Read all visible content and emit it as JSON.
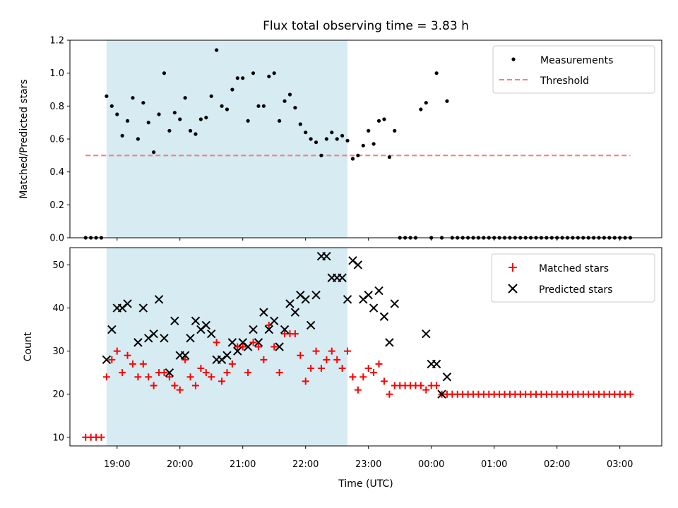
{
  "title": "Flux total observing time = 3.83 h",
  "colors": {
    "shade": "#add8e6",
    "threshold": "#f08080",
    "measurements": "#000000",
    "matched": "#ff0000",
    "predicted": "#000000"
  },
  "chart_data": [
    {
      "type": "scatter",
      "ylabel": "Matched/Predicted stars",
      "xlim": [
        "18:15",
        "03:40"
      ],
      "ylim": [
        0,
        1.2
      ],
      "yticks": [
        0.0,
        0.2,
        0.4,
        0.6,
        0.8,
        1.0,
        1.2
      ],
      "ytick_labels": [
        "0.0",
        "0.2",
        "0.4",
        "0.6",
        "0.8",
        "1.0",
        "1.2"
      ],
      "shaded_interval": [
        "18:50",
        "22:40"
      ],
      "legend_position": "top-right",
      "legend": [
        "Measurements",
        "Threshold"
      ],
      "threshold": {
        "name": "Threshold",
        "y": 0.5,
        "x": [
          "18:30",
          "03:10"
        ]
      },
      "series": [
        {
          "name": "Measurements",
          "x": [
            "18:30",
            "18:35",
            "18:40",
            "18:45",
            "18:50",
            "18:55",
            "19:00",
            "19:05",
            "19:10",
            "19:15",
            "19:20",
            "19:25",
            "19:30",
            "19:35",
            "19:40",
            "19:45",
            "19:50",
            "19:55",
            "20:00",
            "20:05",
            "20:10",
            "20:15",
            "20:20",
            "20:25",
            "20:30",
            "20:35",
            "20:40",
            "20:45",
            "20:50",
            "20:55",
            "21:00",
            "21:05",
            "21:10",
            "21:15",
            "21:20",
            "21:25",
            "21:30",
            "21:35",
            "21:40",
            "21:45",
            "21:50",
            "21:55",
            "22:00",
            "22:05",
            "22:10",
            "22:15",
            "22:20",
            "22:25",
            "22:30",
            "22:35",
            "22:40",
            "22:45",
            "22:50",
            "22:55",
            "23:00",
            "23:05",
            "23:10",
            "23:15",
            "23:20",
            "23:25",
            "23:30",
            "23:35",
            "23:40",
            "23:45",
            "23:50",
            "23:55",
            "00:00",
            "00:05",
            "00:10",
            "00:15",
            "00:20",
            "00:25",
            "00:30",
            "00:35",
            "00:40",
            "00:45",
            "00:50",
            "00:55",
            "01:00",
            "01:05",
            "01:10",
            "01:15",
            "01:20",
            "01:25",
            "01:30",
            "01:35",
            "01:40",
            "01:45",
            "01:50",
            "01:55",
            "02:00",
            "02:05",
            "02:10",
            "02:15",
            "02:20",
            "02:25",
            "02:30",
            "02:35",
            "02:40",
            "02:45",
            "02:50",
            "02:55",
            "03:00",
            "03:05",
            "03:10"
          ],
          "y": [
            0,
            0,
            0,
            0,
            0.86,
            0.8,
            0.75,
            0.62,
            0.71,
            0.85,
            0.6,
            0.82,
            0.7,
            0.52,
            0.75,
            1.0,
            0.65,
            0.76,
            0.72,
            0.85,
            0.65,
            0.63,
            0.72,
            0.73,
            0.86,
            1.14,
            0.8,
            0.78,
            0.9,
            0.97,
            0.97,
            0.71,
            1.0,
            0.8,
            0.8,
            0.98,
            1.0,
            0.71,
            0.83,
            0.87,
            0.79,
            0.69,
            0.64,
            0.6,
            0.58,
            0.5,
            0.6,
            0.64,
            0.6,
            0.62,
            0.59,
            0.48,
            0.5,
            0.56,
            0.65,
            0.57,
            0.71,
            0.72,
            0.49,
            0.65,
            0,
            0,
            0,
            0,
            0.78,
            0.82,
            0,
            1.0,
            0,
            0.83,
            0,
            0,
            0,
            0,
            0,
            0,
            0,
            0,
            0,
            0,
            0,
            0,
            0,
            0,
            0,
            0,
            0,
            0,
            0,
            0,
            0,
            0,
            0,
            0,
            0,
            0,
            0,
            0,
            0,
            0,
            0,
            0,
            0,
            0,
            0
          ]
        }
      ]
    },
    {
      "type": "scatter",
      "xlabel": "Time (UTC)",
      "ylabel": "Count",
      "xlim": [
        "18:15",
        "03:40"
      ],
      "ylim": [
        8,
        54
      ],
      "yticks": [
        10,
        20,
        30,
        40,
        50
      ],
      "ytick_labels": [
        "10",
        "20",
        "30",
        "40",
        "50"
      ],
      "xticks": [
        "19:00",
        "20:00",
        "21:00",
        "22:00",
        "23:00",
        "00:00",
        "01:00",
        "02:00",
        "03:00"
      ],
      "shaded_interval": [
        "18:50",
        "22:40"
      ],
      "legend_position": "top-right",
      "series": [
        {
          "name": "Matched stars",
          "x": [
            "18:30",
            "18:35",
            "18:40",
            "18:45",
            "18:50",
            "18:55",
            "19:00",
            "19:05",
            "19:10",
            "19:15",
            "19:20",
            "19:25",
            "19:30",
            "19:35",
            "19:40",
            "19:45",
            "19:50",
            "19:55",
            "20:00",
            "20:05",
            "20:10",
            "20:15",
            "20:20",
            "20:25",
            "20:30",
            "20:35",
            "20:40",
            "20:45",
            "20:50",
            "20:55",
            "21:00",
            "21:05",
            "21:10",
            "21:15",
            "21:20",
            "21:25",
            "21:30",
            "21:35",
            "21:40",
            "21:45",
            "21:50",
            "21:55",
            "22:00",
            "22:05",
            "22:10",
            "22:15",
            "22:20",
            "22:25",
            "22:30",
            "22:35",
            "22:40",
            "22:45",
            "22:50",
            "22:55",
            "23:00",
            "23:05",
            "23:10",
            "23:15",
            "23:20",
            "23:25",
            "23:30",
            "23:35",
            "23:40",
            "23:45",
            "23:50",
            "23:55",
            "00:00",
            "00:05",
            "00:10",
            "00:15",
            "00:20",
            "00:25",
            "00:30",
            "00:35",
            "00:40",
            "00:45",
            "00:50",
            "00:55",
            "01:00",
            "01:05",
            "01:10",
            "01:15",
            "01:20",
            "01:25",
            "01:30",
            "01:35",
            "01:40",
            "01:45",
            "01:50",
            "01:55",
            "02:00",
            "02:05",
            "02:10",
            "02:15",
            "02:20",
            "02:25",
            "02:30",
            "02:35",
            "02:40",
            "02:45",
            "02:50",
            "02:55",
            "03:00",
            "03:05",
            "03:10"
          ],
          "y": [
            10,
            10,
            10,
            10,
            24,
            28,
            30,
            25,
            29,
            27,
            24,
            27,
            24,
            22,
            25,
            25,
            24,
            22,
            21,
            28,
            24,
            22,
            26,
            25,
            24,
            32,
            23,
            25,
            27,
            31,
            31,
            25,
            32,
            31,
            28,
            36,
            31,
            25,
            34,
            34,
            34,
            29,
            23,
            26,
            30,
            26,
            28,
            30,
            28,
            26,
            30,
            24,
            21,
            24,
            26,
            25,
            27,
            23,
            20,
            22,
            22,
            22,
            22,
            22,
            22,
            21,
            22,
            22,
            20,
            20,
            20,
            20,
            20,
            20,
            20,
            20,
            20,
            20,
            20,
            20,
            20,
            20,
            20,
            20,
            20,
            20,
            20,
            20,
            20,
            20,
            20,
            20,
            20,
            20,
            20,
            20,
            20,
            20,
            20,
            20,
            20,
            20,
            20,
            20,
            20
          ]
        },
        {
          "name": "Predicted stars",
          "x": [
            "18:50",
            "18:55",
            "19:00",
            "19:05",
            "19:10",
            "19:20",
            "19:25",
            "19:30",
            "19:35",
            "19:40",
            "19:45",
            "19:50",
            "19:55",
            "20:00",
            "20:05",
            "20:10",
            "20:15",
            "20:20",
            "20:25",
            "20:30",
            "20:35",
            "20:40",
            "20:45",
            "20:50",
            "20:55",
            "21:00",
            "21:05",
            "21:10",
            "21:15",
            "21:20",
            "21:25",
            "21:30",
            "21:35",
            "21:40",
            "21:45",
            "21:50",
            "21:55",
            "22:00",
            "22:05",
            "22:10",
            "22:15",
            "22:20",
            "22:25",
            "22:30",
            "22:35",
            "22:40",
            "22:45",
            "22:50",
            "22:55",
            "23:00",
            "23:05",
            "23:10",
            "23:15",
            "23:20",
            "23:25",
            "23:55",
            "00:00",
            "00:05",
            "00:10",
            "00:15"
          ],
          "y": [
            28,
            35,
            40,
            40,
            41,
            32,
            40,
            33,
            34,
            42,
            33,
            25,
            37,
            29,
            29,
            33,
            37,
            35,
            36,
            34,
            28,
            28,
            29,
            32,
            30,
            32,
            31,
            35,
            32,
            39,
            35,
            37,
            31,
            35,
            41,
            39,
            43,
            42,
            36,
            43,
            52,
            52,
            47,
            47,
            47,
            42,
            51,
            50,
            42,
            43,
            40,
            44,
            38,
            32,
            41,
            34,
            27,
            27,
            20,
            24
          ]
        }
      ]
    }
  ]
}
